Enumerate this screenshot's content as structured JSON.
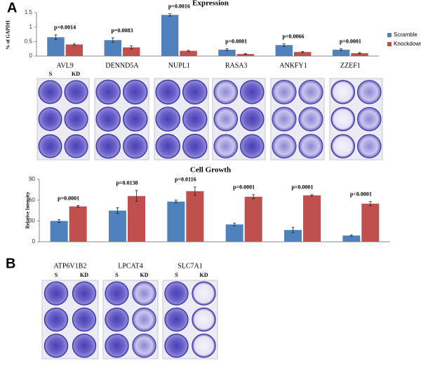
{
  "panel_labels": [
    "A",
    "B"
  ],
  "chart_data": [
    {
      "type": "bar",
      "title": "Expression",
      "y_label": "% of GAPDH",
      "categories": [
        "AVL9",
        "DENND5A",
        "NUPL1",
        "RASA3",
        "ANKFY1",
        "ZZEF1"
      ],
      "series": [
        {
          "name": "Scramble",
          "color": "#4f81bd",
          "values": [
            0.65,
            0.55,
            1.42,
            0.22,
            0.38,
            0.22
          ],
          "errors": [
            0.08,
            0.08,
            0.04,
            0.03,
            0.04,
            0.03
          ]
        },
        {
          "name": "Knockdown",
          "color": "#c0504d",
          "values": [
            0.4,
            0.3,
            0.18,
            0.07,
            0.14,
            0.1
          ],
          "errors": [
            0.03,
            0.06,
            0.02,
            0.01,
            0.02,
            0.02
          ]
        }
      ],
      "annotations": [
        "p=0.0014",
        "p=0.0083",
        "p=0.0016",
        "p=0.0001",
        "p=0.0066",
        "p=0.0001"
      ],
      "ylim": [
        0,
        1.5
      ],
      "yticks": [
        0,
        0.5,
        1,
        1.5
      ],
      "legend": "right"
    },
    {
      "type": "bar",
      "title": "Cell Growth",
      "y_label": "Relative Intensity",
      "series": [
        {
          "color": "#4f81bd",
          "values": [
            30,
            45,
            58,
            25,
            17,
            9
          ],
          "errors": [
            2,
            4,
            2,
            2,
            4,
            1
          ]
        },
        {
          "color": "#c0504d",
          "values": [
            51,
            66,
            73,
            65,
            67,
            55
          ],
          "errors": [
            1,
            8,
            6,
            3,
            1,
            3
          ]
        }
      ],
      "annotations": [
        "p=0.0001",
        "p=0.0138",
        "p=0.0116",
        "p=0.0001",
        "p=0.0001",
        "p<0.0001"
      ],
      "ylim": [
        0,
        90
      ],
      "yticks": [
        0,
        30,
        60,
        90
      ]
    }
  ],
  "plate_columns": [
    "S",
    "KD"
  ],
  "plates_b": [
    "ATP6V1B2",
    "LPCAT4",
    "SLC7A1"
  ]
}
